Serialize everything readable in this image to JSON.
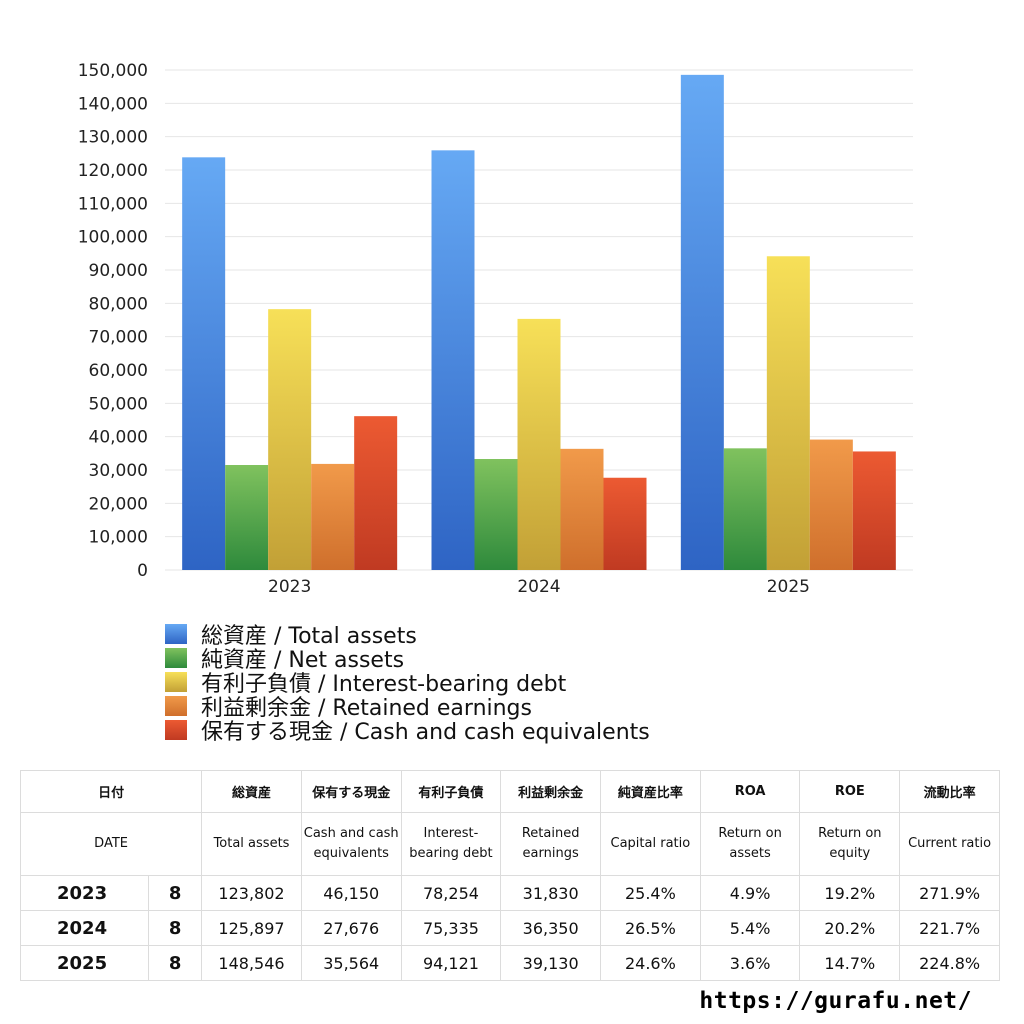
{
  "chart_data": {
    "type": "bar",
    "categories": [
      "2023",
      "2024",
      "2025"
    ],
    "series": [
      {
        "name": "総資産 / Total assets",
        "values": [
          123802,
          125897,
          148546
        ],
        "color_top": "#66a9f4",
        "color_bottom": "#2e64c4"
      },
      {
        "name": "純資産 / Net assets",
        "values": [
          31500,
          33300,
          36500
        ],
        "color_top": "#80c25e",
        "color_bottom": "#2e8a3c"
      },
      {
        "name": "有利子負債 / Interest-bearing debt",
        "values": [
          78254,
          75335,
          94121
        ],
        "color_top": "#f7e058",
        "color_bottom": "#c2a036"
      },
      {
        "name": "利益剰余金 / Retained earnings",
        "values": [
          31830,
          36350,
          39130
        ],
        "color_top": "#f19a4a",
        "color_bottom": "#cf6f2c"
      },
      {
        "name": "保有する現金 /  Cash and cash equivalents",
        "values": [
          46150,
          27676,
          35564
        ],
        "color_top": "#ec5a32",
        "color_bottom": "#c03a22"
      }
    ],
    "ylim": [
      0,
      150000
    ],
    "yticks": [
      0,
      10000,
      20000,
      30000,
      40000,
      50000,
      60000,
      70000,
      80000,
      90000,
      100000,
      110000,
      120000,
      130000,
      140000,
      150000
    ],
    "ytick_labels": [
      "0",
      "10,000",
      "20,000",
      "30,000",
      "40,000",
      "50,000",
      "60,000",
      "70,000",
      "80,000",
      "90,000",
      "100,000",
      "110,000",
      "120,000",
      "130,000",
      "140,000",
      "150,000"
    ],
    "grid": true,
    "legend_position": "bottom",
    "title": "",
    "xlabel": "",
    "ylabel": ""
  },
  "table": {
    "headers_jp": [
      "日付",
      "総資産",
      "保有する現金",
      "有利子負債",
      "利益剰余金",
      "純資産比率",
      "ROA",
      "ROE",
      "流動比率"
    ],
    "headers_en": [
      "DATE",
      "Total assets",
      "Cash and cash equivalents",
      "Interest-bearing debt",
      "Retained earnings",
      "Capital ratio",
      "Return on assets",
      "Return on equity",
      "Current ratio"
    ],
    "rows": [
      {
        "year": "2023",
        "month": "8",
        "cells": [
          "123,802",
          "46,150",
          "78,254",
          "31,830",
          "25.4%",
          "4.9%",
          "19.2%",
          "271.9%"
        ]
      },
      {
        "year": "2024",
        "month": "8",
        "cells": [
          "125,897",
          "27,676",
          "75,335",
          "36,350",
          "26.5%",
          "5.4%",
          "20.2%",
          "221.7%"
        ]
      },
      {
        "year": "2025",
        "month": "8",
        "cells": [
          "148,546",
          "35,564",
          "94,121",
          "39,130",
          "24.6%",
          "3.6%",
          "14.7%",
          "224.8%"
        ]
      }
    ]
  },
  "footer": {
    "url": "https://gurafu.net/"
  }
}
